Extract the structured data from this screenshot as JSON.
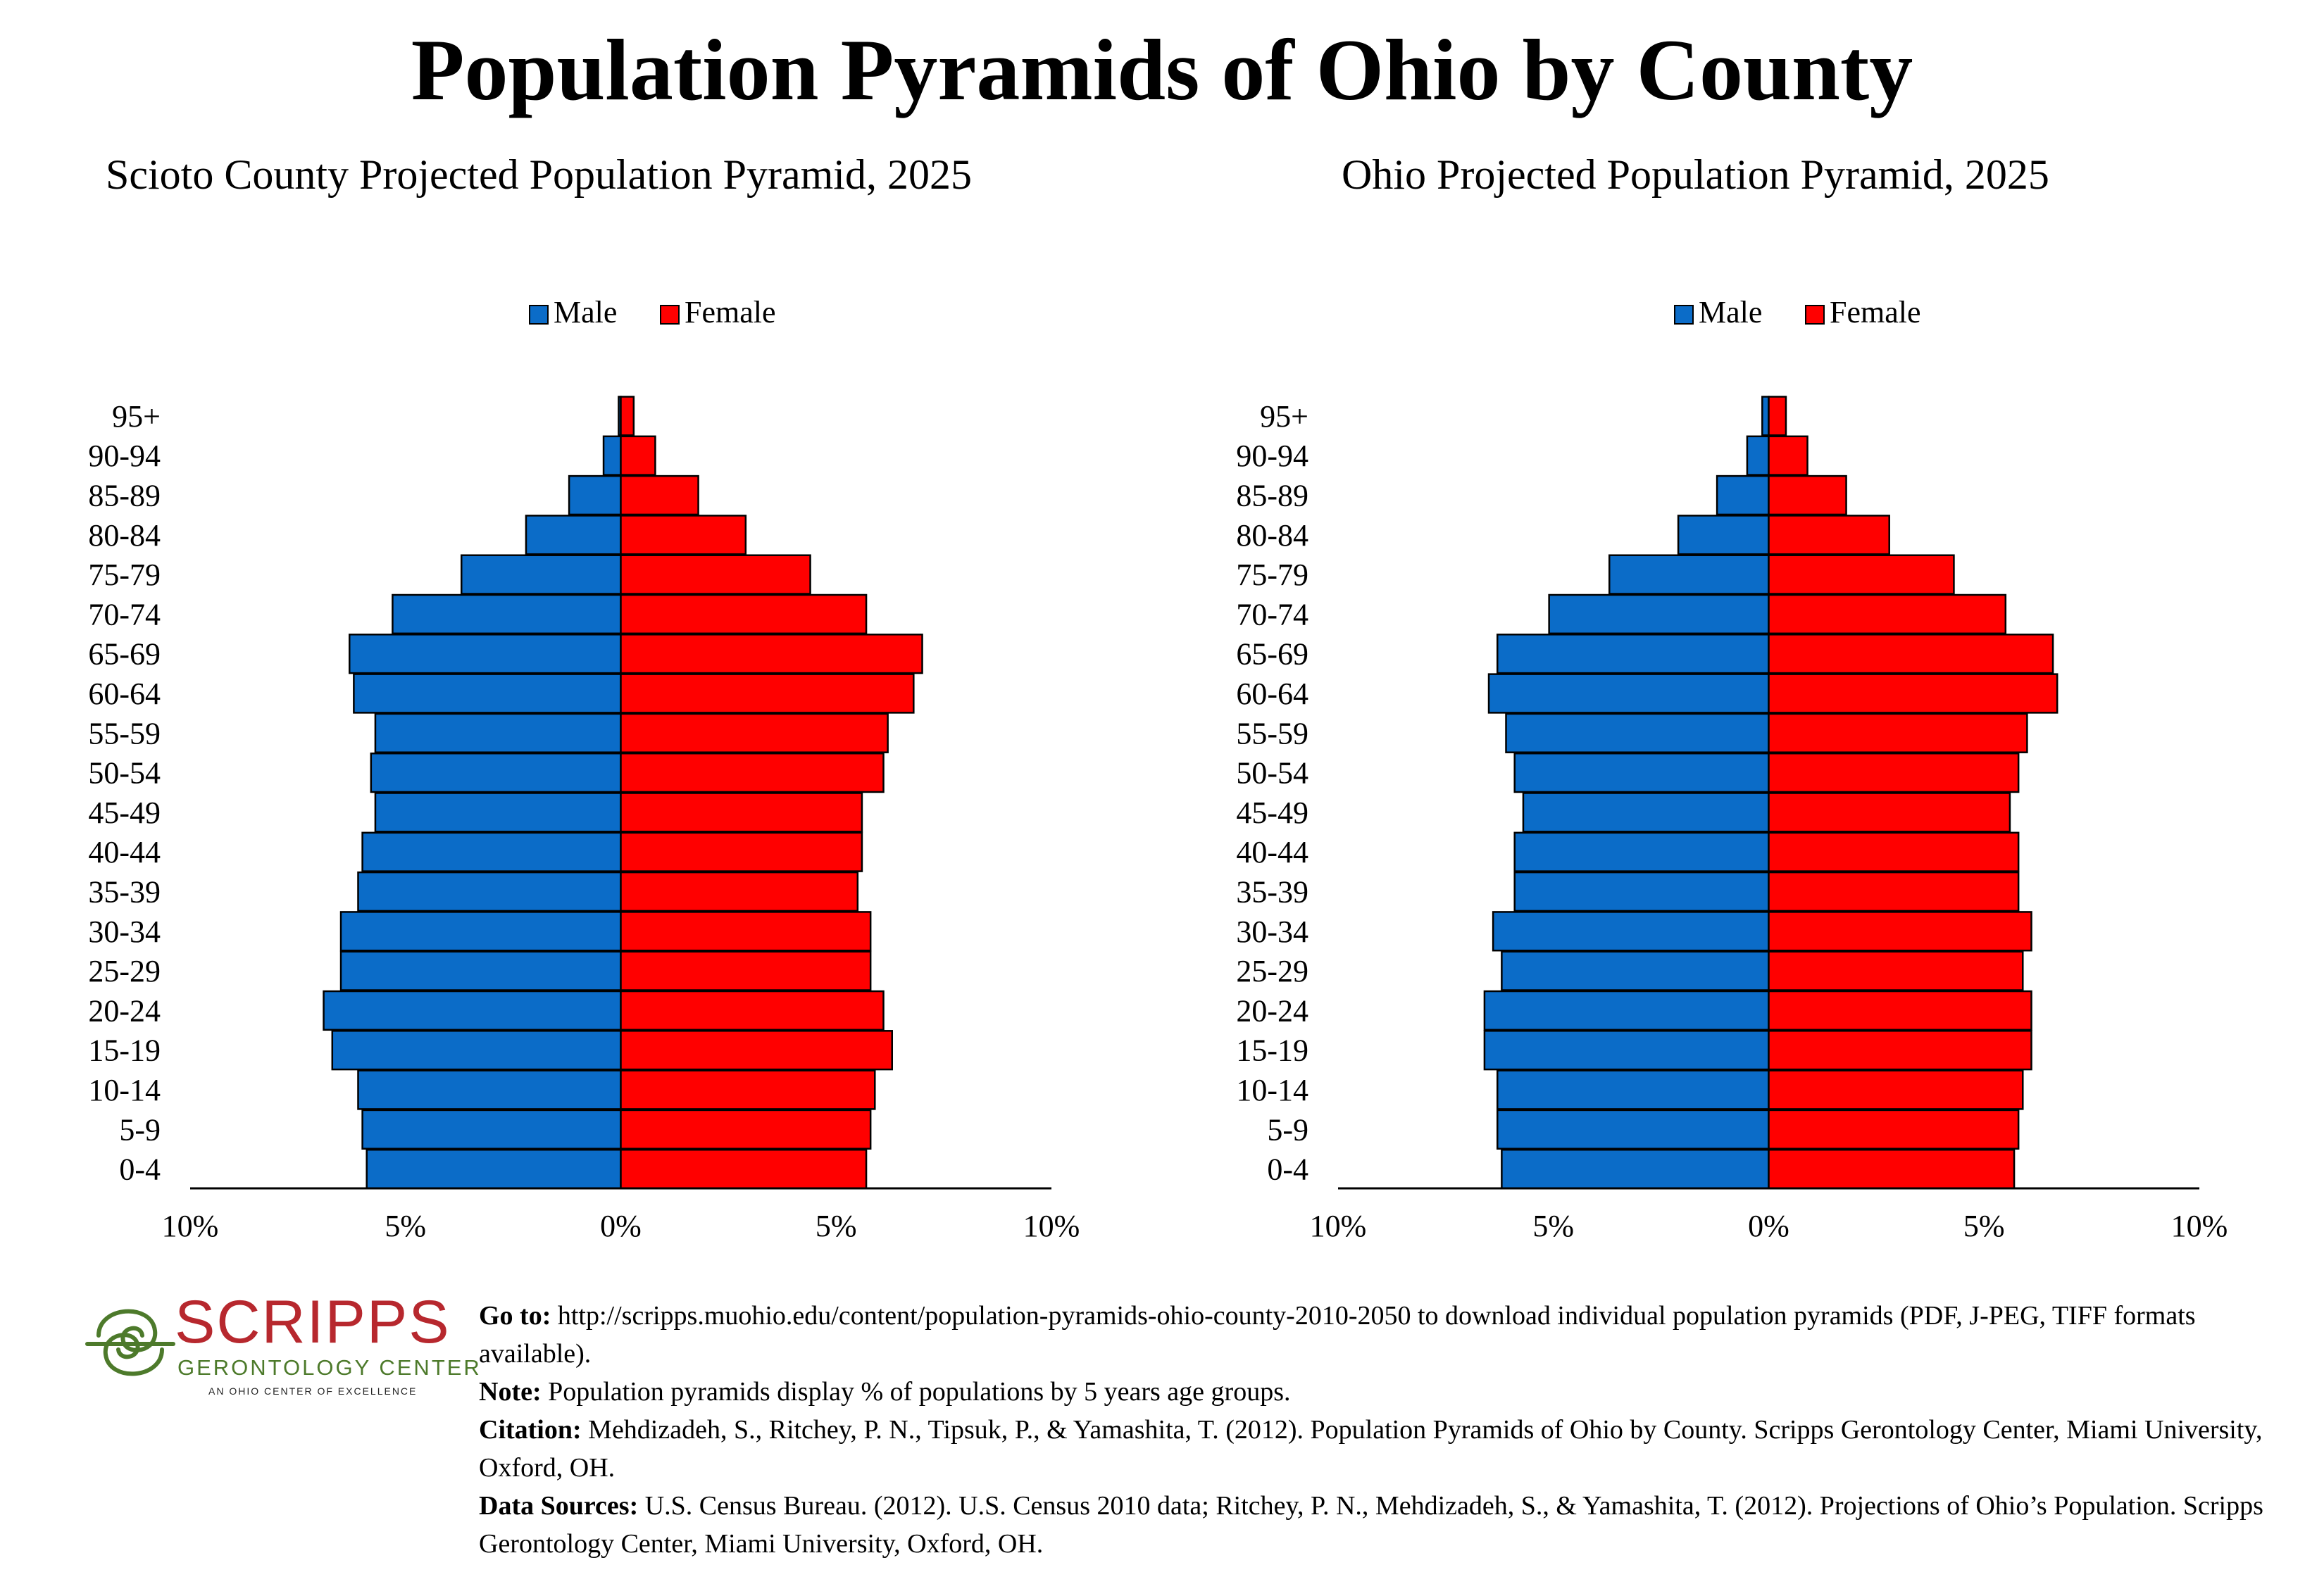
{
  "main_title": "Population Pyramids of Ohio by County",
  "colors": {
    "male": "#0b6cc8",
    "female": "#ff0000",
    "axis": "#000000"
  },
  "chart_data": [
    {
      "type": "bar",
      "title": "Scioto County Projected Population Pyramid, 2025",
      "legend": [
        "Male",
        "Female"
      ],
      "legend_position": "top-center",
      "categories": [
        "0-4",
        "5-9",
        "10-14",
        "15-19",
        "20-24",
        "25-29",
        "30-34",
        "35-39",
        "40-44",
        "45-49",
        "50-54",
        "55-59",
        "60-64",
        "65-69",
        "70-74",
        "75-79",
        "80-84",
        "85-89",
        "90-94",
        "95+"
      ],
      "series": [
        {
          "name": "Male",
          "values": [
            5.9,
            6.0,
            6.1,
            6.7,
            6.9,
            6.5,
            6.5,
            6.1,
            6.0,
            5.7,
            5.8,
            5.7,
            6.2,
            6.3,
            5.3,
            3.7,
            2.2,
            1.2,
            0.4,
            0.05
          ]
        },
        {
          "name": "Female",
          "values": [
            5.7,
            5.8,
            5.9,
            6.3,
            6.1,
            5.8,
            5.8,
            5.5,
            5.6,
            5.6,
            6.1,
            6.2,
            6.8,
            7.0,
            5.7,
            4.4,
            2.9,
            1.8,
            0.8,
            0.3
          ]
        }
      ],
      "x_tick_labels": [
        "10%",
        "5%",
        "0%",
        "5%",
        "10%"
      ],
      "xlim": [
        -10,
        10
      ]
    },
    {
      "type": "bar",
      "title": "Ohio Projected Population Pyramid, 2025",
      "legend": [
        "Male",
        "Female"
      ],
      "legend_position": "top-center",
      "categories": [
        "0-4",
        "5-9",
        "10-14",
        "15-19",
        "20-24",
        "25-29",
        "30-34",
        "35-39",
        "40-44",
        "45-49",
        "50-54",
        "55-59",
        "60-64",
        "65-69",
        "70-74",
        "75-79",
        "80-84",
        "85-89",
        "90-94",
        "95+"
      ],
      "series": [
        {
          "name": "Male",
          "values": [
            6.2,
            6.3,
            6.3,
            6.6,
            6.6,
            6.2,
            6.4,
            5.9,
            5.9,
            5.7,
            5.9,
            6.1,
            6.5,
            6.3,
            5.1,
            3.7,
            2.1,
            1.2,
            0.5,
            0.15
          ]
        },
        {
          "name": "Female",
          "values": [
            5.7,
            5.8,
            5.9,
            6.1,
            6.1,
            5.9,
            6.1,
            5.8,
            5.8,
            5.6,
            5.8,
            6.0,
            6.7,
            6.6,
            5.5,
            4.3,
            2.8,
            1.8,
            0.9,
            0.4
          ]
        }
      ],
      "x_tick_labels": [
        "10%",
        "5%",
        "0%",
        "5%",
        "10%"
      ],
      "xlim": [
        -10,
        10
      ]
    }
  ],
  "logo": {
    "wordmark": "SCRIPPS",
    "subtitle": "GERONTOLOGY CENTER",
    "tagline": "AN OHIO CENTER OF EXCELLENCE",
    "red": "#b7282e",
    "green": "#4d7a2b"
  },
  "notes": {
    "goto_label": "Go to:",
    "goto_text": " http://scripps.muohio.edu/content/population-pyramids-ohio-county-2010-2050 to download individual population pyramids (PDF, J-PEG, TIFF formats available).",
    "note_label": "Note:",
    "note_text": " Population pyramids display % of populations by 5 years age groups.",
    "citation_label": "Citation:",
    "citation_text": " Mehdizadeh, S., Ritchey, P. N., Tipsuk, P., & Yamashita, T. (2012). Population Pyramids of Ohio by County. Scripps Gerontology Center, Miami University, Oxford, OH.",
    "sources_label": "Data Sources:",
    "sources_text": " U.S. Census Bureau. (2012). U.S. Census 2010 data; Ritchey, P. N., Mehdizadeh, S., & Yamashita, T. (2012). Projections of Ohio’s Population. Scripps Gerontology Center, Miami University, Oxford, OH."
  }
}
